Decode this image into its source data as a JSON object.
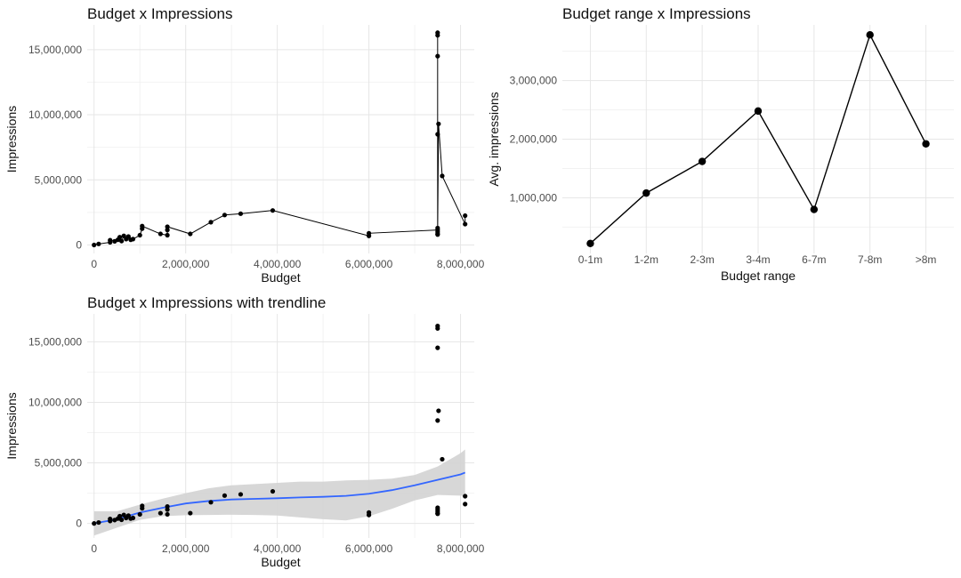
{
  "chart_data": [
    {
      "type": "line",
      "title": "Budget x Impressions",
      "xlabel": "Budget",
      "ylabel": "Impressions",
      "xlim": [
        -150000,
        8300000
      ],
      "ylim": [
        -650000,
        16900000
      ],
      "x_ticks": [
        0,
        2000000,
        4000000,
        6000000,
        8000000
      ],
      "x_tick_labels": [
        "0",
        "2,000,000",
        "4,000,000",
        "6,000,000",
        "8,000,000"
      ],
      "y_ticks": [
        0,
        5000000,
        10000000,
        15000000
      ],
      "y_tick_labels": [
        "0",
        "5,000,000",
        "10,000,000",
        "15,000,000"
      ],
      "grid": true,
      "points": [
        {
          "x": 0,
          "y": 0
        },
        {
          "x": 100000,
          "y": 80000
        },
        {
          "x": 350000,
          "y": 200000
        },
        {
          "x": 350000,
          "y": 370000
        },
        {
          "x": 450000,
          "y": 280000
        },
        {
          "x": 520000,
          "y": 400000
        },
        {
          "x": 560000,
          "y": 600000
        },
        {
          "x": 600000,
          "y": 300000
        },
        {
          "x": 650000,
          "y": 700000
        },
        {
          "x": 700000,
          "y": 450000
        },
        {
          "x": 750000,
          "y": 650000
        },
        {
          "x": 800000,
          "y": 400000
        },
        {
          "x": 850000,
          "y": 450000
        },
        {
          "x": 1000000,
          "y": 750000
        },
        {
          "x": 1050000,
          "y": 1250000
        },
        {
          "x": 1050000,
          "y": 1450000
        },
        {
          "x": 1450000,
          "y": 850000
        },
        {
          "x": 1600000,
          "y": 750000
        },
        {
          "x": 1600000,
          "y": 1150000
        },
        {
          "x": 1600000,
          "y": 1400000
        },
        {
          "x": 2100000,
          "y": 850000
        },
        {
          "x": 2550000,
          "y": 1750000
        },
        {
          "x": 2850000,
          "y": 2300000
        },
        {
          "x": 3200000,
          "y": 2400000
        },
        {
          "x": 3900000,
          "y": 2650000
        },
        {
          "x": 6000000,
          "y": 700000
        },
        {
          "x": 6000000,
          "y": 900000
        },
        {
          "x": 7500000,
          "y": 1150000
        },
        {
          "x": 7500000,
          "y": 800000
        },
        {
          "x": 7500000,
          "y": 1000000
        },
        {
          "x": 7500000,
          "y": 1300000
        },
        {
          "x": 7500000,
          "y": 8500000
        },
        {
          "x": 7500000,
          "y": 14500000
        },
        {
          "x": 7500000,
          "y": 16100000
        },
        {
          "x": 7500000,
          "y": 16300000
        },
        {
          "x": 7500000,
          "y": 850000
        },
        {
          "x": 7520000,
          "y": 9300000
        },
        {
          "x": 7600000,
          "y": 5300000
        },
        {
          "x": 8100000,
          "y": 1600000
        },
        {
          "x": 8100000,
          "y": 2250000
        }
      ]
    },
    {
      "type": "line",
      "title": "Budget range x Impressions",
      "xlabel": "Budget range",
      "ylabel": "Avg. impressions",
      "categories": [
        "0-1m",
        "1-2m",
        "2-3m",
        "3-4m",
        "6-7m",
        "7-8m",
        ">8m"
      ],
      "values": [
        220000,
        1080000,
        1620000,
        2480000,
        800000,
        3780000,
        1920000
      ],
      "ylim": [
        50000,
        3950000
      ],
      "y_ticks": [
        1000000,
        2000000,
        3000000
      ],
      "y_tick_labels": [
        "1,000,000",
        "2,000,000",
        "3,000,000"
      ],
      "grid": true
    },
    {
      "type": "scatter",
      "title": "Budget x Impressions with trendline",
      "xlabel": "Budget",
      "ylabel": "Impressions",
      "xlim": [
        -150000,
        8300000
      ],
      "ylim": [
        -1200000,
        17300000
      ],
      "x_ticks": [
        0,
        2000000,
        4000000,
        6000000,
        8000000
      ],
      "x_tick_labels": [
        "0",
        "2,000,000",
        "4,000,000",
        "6,000,000",
        "8,000,000"
      ],
      "y_ticks": [
        0,
        5000000,
        10000000,
        15000000
      ],
      "y_tick_labels": [
        "0",
        "5,000,000",
        "10,000,000",
        "15,000,000"
      ],
      "grid": true,
      "trend_color": "#3366ff",
      "band_color": "#d3d3d3",
      "trend": {
        "x": [
          0,
          500000,
          1000000,
          1500000,
          2000000,
          2500000,
          3000000,
          3500000,
          4000000,
          4500000,
          5000000,
          5500000,
          6000000,
          6500000,
          7000000,
          7500000,
          8000000,
          8100000
        ],
        "y": [
          0,
          350000,
          900000,
          1300000,
          1650000,
          1850000,
          1980000,
          2030000,
          2080000,
          2150000,
          2200000,
          2280000,
          2450000,
          2750000,
          3150000,
          3600000,
          4050000,
          4200000
        ],
        "lower": [
          -1000000,
          -350000,
          300000,
          600000,
          680000,
          700000,
          720000,
          700000,
          650000,
          500000,
          350000,
          250000,
          600000,
          1200000,
          1900000,
          2350000,
          2300000,
          2250000
        ],
        "upper": [
          1000000,
          1000000,
          1550000,
          2050000,
          2500000,
          2900000,
          3150000,
          3250000,
          3350000,
          3450000,
          3450000,
          3550000,
          3600000,
          3700000,
          4000000,
          4700000,
          5800000,
          6100000
        ]
      },
      "points": [
        {
          "x": 0,
          "y": 0
        },
        {
          "x": 100000,
          "y": 80000
        },
        {
          "x": 350000,
          "y": 200000
        },
        {
          "x": 350000,
          "y": 370000
        },
        {
          "x": 450000,
          "y": 280000
        },
        {
          "x": 520000,
          "y": 400000
        },
        {
          "x": 560000,
          "y": 600000
        },
        {
          "x": 600000,
          "y": 300000
        },
        {
          "x": 650000,
          "y": 700000
        },
        {
          "x": 700000,
          "y": 450000
        },
        {
          "x": 750000,
          "y": 650000
        },
        {
          "x": 800000,
          "y": 400000
        },
        {
          "x": 850000,
          "y": 450000
        },
        {
          "x": 1000000,
          "y": 750000
        },
        {
          "x": 1050000,
          "y": 1250000
        },
        {
          "x": 1050000,
          "y": 1450000
        },
        {
          "x": 1450000,
          "y": 850000
        },
        {
          "x": 1600000,
          "y": 750000
        },
        {
          "x": 1600000,
          "y": 1150000
        },
        {
          "x": 1600000,
          "y": 1400000
        },
        {
          "x": 2100000,
          "y": 850000
        },
        {
          "x": 2550000,
          "y": 1750000
        },
        {
          "x": 2850000,
          "y": 2300000
        },
        {
          "x": 3200000,
          "y": 2400000
        },
        {
          "x": 3900000,
          "y": 2650000
        },
        {
          "x": 6000000,
          "y": 700000
        },
        {
          "x": 6000000,
          "y": 900000
        },
        {
          "x": 7500000,
          "y": 1150000
        },
        {
          "x": 7500000,
          "y": 800000
        },
        {
          "x": 7500000,
          "y": 1000000
        },
        {
          "x": 7500000,
          "y": 1300000
        },
        {
          "x": 7500000,
          "y": 8500000
        },
        {
          "x": 7500000,
          "y": 14500000
        },
        {
          "x": 7500000,
          "y": 16100000
        },
        {
          "x": 7500000,
          "y": 16300000
        },
        {
          "x": 7500000,
          "y": 850000
        },
        {
          "x": 7520000,
          "y": 9300000
        },
        {
          "x": 7600000,
          "y": 5300000
        },
        {
          "x": 8100000,
          "y": 1600000
        },
        {
          "x": 8100000,
          "y": 2250000
        }
      ]
    }
  ]
}
